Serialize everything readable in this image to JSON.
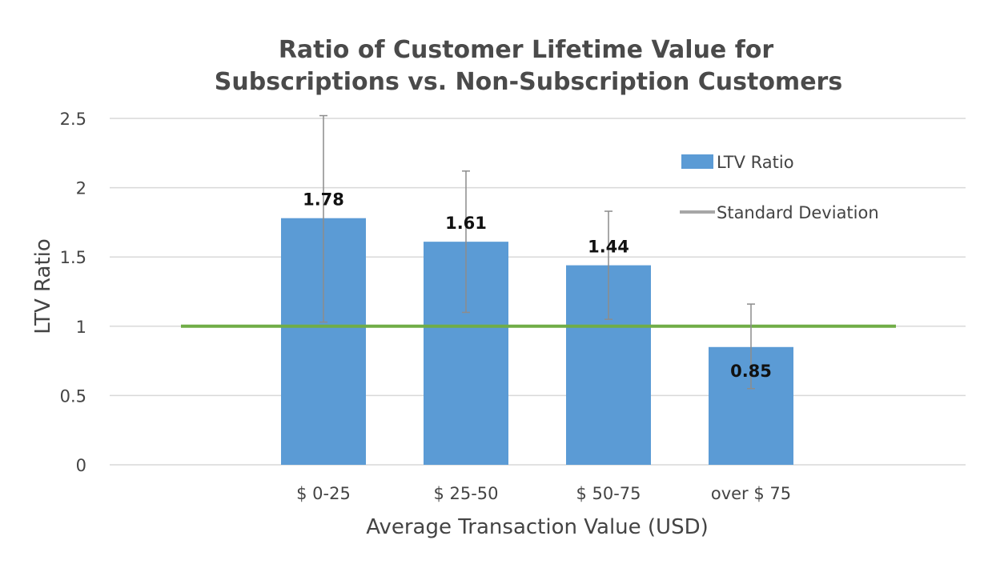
{
  "chart_data": {
    "type": "bar",
    "title_lines": [
      "Ratio of Customer Lifetime Value for",
      "Subscriptions vs. Non-Subscription Customers"
    ],
    "xlabel": "Average Transaction Value (USD)",
    "ylabel": "LTV Ratio",
    "categories": [
      "$ 0-25",
      "$ 25-50",
      "$ 50-75",
      "over $ 75"
    ],
    "series": [
      {
        "name": "LTV Ratio",
        "values": [
          1.78,
          1.61,
          1.44,
          0.85
        ],
        "data_labels": [
          "1.78",
          "1.61",
          "1.44",
          "0.85"
        ],
        "error_low": [
          1.03,
          1.1,
          1.05,
          0.55
        ],
        "error_high": [
          2.52,
          2.12,
          1.83,
          1.16
        ]
      }
    ],
    "reference_line": {
      "y": 1.0
    },
    "ylim": [
      0,
      2.5
    ],
    "yticks": [
      0,
      0.5,
      1,
      1.5,
      2,
      2.5
    ],
    "ytick_labels": [
      "0",
      "0.5",
      "1",
      "1.5",
      "2",
      "2.5"
    ],
    "grid": true,
    "legend": {
      "position": "top-right",
      "entries": [
        "LTV Ratio",
        "Standard Deviation"
      ]
    },
    "colors": {
      "bar": "#5b9bd5",
      "error_bar": "#8c8c8c",
      "reference_line": "#70ad47",
      "legend_line": "#a6a6a6",
      "grid": "#d9d9d9"
    }
  }
}
